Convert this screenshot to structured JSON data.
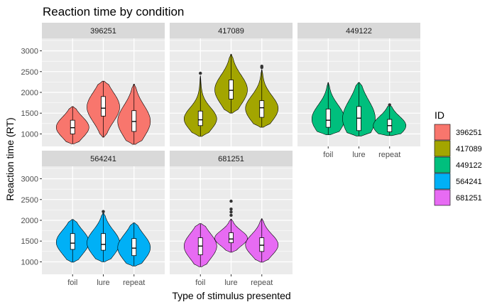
{
  "chart_data": {
    "type": "violin",
    "title": "Reaction time by condition",
    "xlabel": "Type of stimulus presented",
    "ylabel": "Reaction time (RT)",
    "categories": [
      "foil",
      "lure",
      "repeat"
    ],
    "yticks": [
      1000,
      1500,
      2000,
      2500,
      3000
    ],
    "ylim": [
      700,
      3300
    ],
    "grid": true,
    "legend": {
      "title": "ID",
      "position": "right",
      "entries": [
        "396251",
        "417089",
        "449122",
        "564241",
        "681251"
      ]
    },
    "colors": {
      "396251": "#F8766D",
      "417089": "#A3A500",
      "449122": "#00BF7D",
      "564241": "#00B0F6",
      "681251": "#E76BF3"
    },
    "panels": [
      {
        "id": "396251",
        "groups": {
          "foil": {
            "min": 760,
            "q1": 1000,
            "median": 1150,
            "q3": 1330,
            "max": 1660,
            "outliers": []
          },
          "lure": {
            "min": 920,
            "q1": 1430,
            "median": 1620,
            "q3": 1900,
            "max": 2270,
            "outliers": []
          },
          "repeat": {
            "min": 750,
            "q1": 1060,
            "median": 1300,
            "q3": 1560,
            "max": 2200,
            "outliers": []
          }
        }
      },
      {
        "id": "417089",
        "groups": {
          "foil": {
            "min": 940,
            "q1": 1200,
            "median": 1340,
            "q3": 1550,
            "max": 2400,
            "outliers": [
              2460
            ]
          },
          "lure": {
            "min": 1500,
            "q1": 1840,
            "median": 2050,
            "q3": 2300,
            "max": 2920,
            "outliers": []
          },
          "repeat": {
            "min": 1160,
            "q1": 1400,
            "median": 1630,
            "q3": 1800,
            "max": 2550,
            "outliers": [
              2600,
              2630
            ]
          }
        }
      },
      {
        "id": "449122",
        "groups": {
          "foil": {
            "min": 980,
            "q1": 1160,
            "median": 1330,
            "q3": 1600,
            "max": 2240,
            "outliers": []
          },
          "lure": {
            "min": 950,
            "q1": 1080,
            "median": 1380,
            "q3": 1660,
            "max": 2240,
            "outliers": []
          },
          "repeat": {
            "min": 960,
            "q1": 1050,
            "median": 1200,
            "q3": 1350,
            "max": 1700,
            "outliers": [
              1700
            ]
          }
        }
      },
      {
        "id": "564241",
        "groups": {
          "foil": {
            "min": 990,
            "q1": 1300,
            "median": 1450,
            "q3": 1680,
            "max": 2020,
            "outliers": []
          },
          "lure": {
            "min": 1000,
            "q1": 1280,
            "median": 1420,
            "q3": 1680,
            "max": 2180,
            "outliers": [
              2210
            ]
          },
          "repeat": {
            "min": 900,
            "q1": 1150,
            "median": 1330,
            "q3": 1560,
            "max": 1940,
            "outliers": []
          }
        }
      },
      {
        "id": "681251",
        "groups": {
          "foil": {
            "min": 880,
            "q1": 1170,
            "median": 1380,
            "q3": 1580,
            "max": 1920,
            "outliers": []
          },
          "lure": {
            "min": 1230,
            "q1": 1460,
            "median": 1550,
            "q3": 1700,
            "max": 2030,
            "outliers": [
              2120,
              2200,
              2270,
              2460
            ]
          },
          "repeat": {
            "min": 990,
            "q1": 1250,
            "median": 1400,
            "q3": 1580,
            "max": 2040,
            "outliers": []
          }
        }
      }
    ]
  }
}
